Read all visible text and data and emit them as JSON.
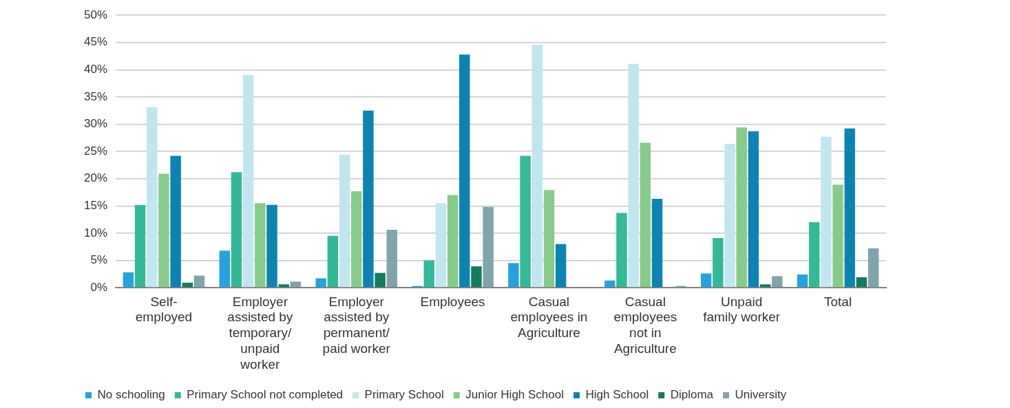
{
  "chart_data": {
    "type": "bar",
    "categories": [
      "Self-employed",
      "Employer assisted by temporary/unpaid worker",
      "Employer assisted by permanent/paid worker",
      "Employees",
      "Casual employees in Agriculture",
      "Casual employees not in Agriculture",
      "Unpaid family worker",
      "Total"
    ],
    "series": [
      {
        "name": "No schooling",
        "color": "#27a2dc",
        "values": [
          2.8,
          6.8,
          1.7,
          0.3,
          4.5,
          1.3,
          2.6,
          2.4
        ]
      },
      {
        "name": "Primary School not completed",
        "color": "#34b898",
        "values": [
          15.2,
          21.2,
          9.5,
          5.0,
          24.2,
          13.7,
          9.1,
          12.0
        ]
      },
      {
        "name": "Primary School",
        "color": "#c2e6ef",
        "values": [
          33.1,
          39.0,
          24.4,
          15.5,
          44.6,
          41.1,
          26.4,
          27.7
        ]
      },
      {
        "name": "Junior High School",
        "color": "#88ca8a",
        "values": [
          20.9,
          15.5,
          17.7,
          17.0,
          17.9,
          26.6,
          29.4,
          18.9
        ]
      },
      {
        "name": "High School",
        "color": "#0e83b2",
        "values": [
          24.2,
          15.2,
          32.5,
          42.8,
          8.0,
          16.3,
          28.7,
          29.2
        ]
      },
      {
        "name": "Diploma",
        "color": "#167a5c",
        "values": [
          0.9,
          0.6,
          2.7,
          3.9,
          0,
          0,
          0.6,
          1.9
        ]
      },
      {
        "name": "University",
        "color": "#80a4a9",
        "values": [
          2.2,
          1.1,
          10.6,
          14.8,
          0,
          0.3,
          2.1,
          7.2
        ]
      }
    ],
    "ylim": [
      0,
      50
    ],
    "yticks": [
      {
        "value": 0,
        "label": "0%"
      },
      {
        "value": 5,
        "label": "5%"
      },
      {
        "value": 10,
        "label": "10%"
      },
      {
        "value": 15,
        "label": "15%"
      },
      {
        "value": 20,
        "label": "20%"
      },
      {
        "value": 25,
        "label": "25%"
      },
      {
        "value": 30,
        "label": "30%"
      },
      {
        "value": 35,
        "label": "35%"
      },
      {
        "value": 40,
        "label": "40%"
      },
      {
        "value": 45,
        "label": "45%"
      },
      {
        "value": 50,
        "label": "50%"
      }
    ],
    "grid": "y",
    "legend": "bottom left"
  }
}
